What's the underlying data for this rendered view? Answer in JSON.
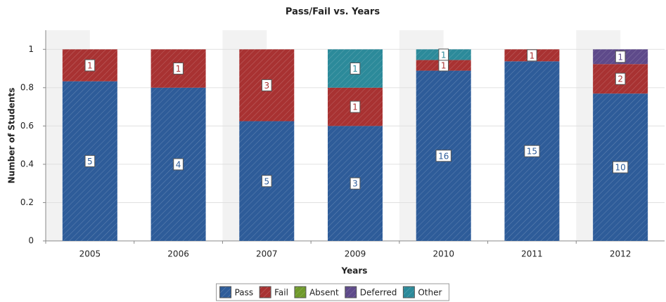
{
  "chart_data": {
    "type": "bar",
    "stacking": "normalized",
    "title": "Pass/Fail vs. Years",
    "x_label": "Years",
    "y_label": "Number of Students",
    "categories": [
      "2005",
      "2006",
      "2007",
      "2009",
      "2010",
      "2011",
      "2012"
    ],
    "series": [
      {
        "name": "Pass",
        "color": "#2e5c99",
        "values": [
          5,
          4,
          5,
          3,
          16,
          15,
          10
        ]
      },
      {
        "name": "Fail",
        "color": "#a83232",
        "values": [
          1,
          1,
          3,
          1,
          1,
          1,
          2
        ]
      },
      {
        "name": "Absent",
        "color": "#6f9a2b",
        "values": [
          null,
          null,
          null,
          null,
          null,
          null,
          null
        ]
      },
      {
        "name": "Deferred",
        "color": "#5e4a8a",
        "values": [
          null,
          null,
          null,
          null,
          null,
          null,
          1
        ]
      },
      {
        "name": "Other",
        "color": "#2c8a9a",
        "values": [
          null,
          null,
          null,
          1,
          1,
          null,
          null
        ]
      }
    ],
    "ylim": [
      0,
      1.1
    ],
    "yticks": [
      0,
      0.2,
      0.4,
      0.6,
      0.8,
      1
    ],
    "legend": "bottom"
  }
}
